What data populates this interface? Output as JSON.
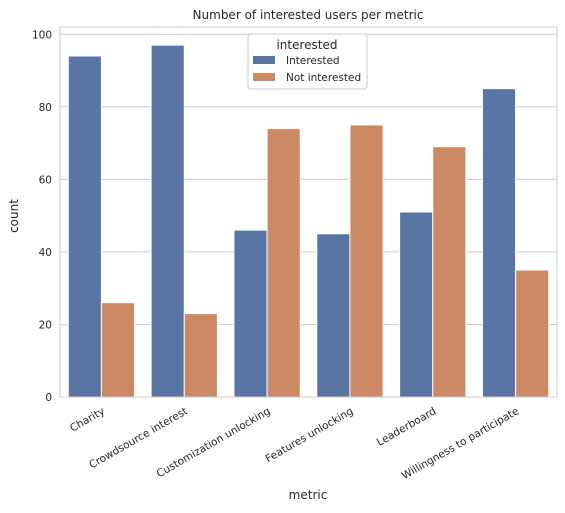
{
  "chart_data": {
    "type": "bar",
    "title": "Number of interested users per metric",
    "xlabel": "metric",
    "ylabel": "count",
    "categories": [
      "Charity",
      "Crowdsource interest",
      "Customization unlocking",
      "Features unlocking",
      "Leaderboard",
      "Willingness to participate"
    ],
    "series": [
      {
        "name": "Interested",
        "color": "#5975a4",
        "values": [
          94,
          97,
          46,
          45,
          51,
          85
        ]
      },
      {
        "name": "Not interested",
        "color": "#cc8963",
        "values": [
          26,
          23,
          74,
          75,
          69,
          35
        ]
      }
    ],
    "ylim": [
      0,
      102
    ],
    "yticks": [
      0,
      20,
      40,
      60,
      80,
      100
    ],
    "grid": "horizontal",
    "legend": {
      "title": "interested",
      "placement": "top-center"
    }
  }
}
